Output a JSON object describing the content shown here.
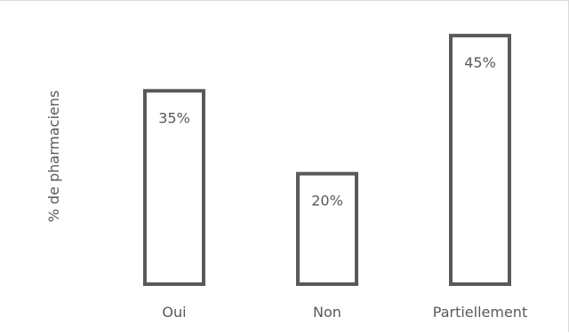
{
  "chart_data": {
    "type": "bar",
    "categories": [
      "Oui",
      "Non",
      "Partiellement"
    ],
    "values": [
      35,
      20,
      45
    ],
    "data_labels": [
      "35%",
      "20%",
      "45%"
    ],
    "title": "",
    "xlabel": "",
    "ylabel": "% de pharmaciens",
    "ylim": [
      0,
      50
    ],
    "grid": false,
    "legend": "none",
    "colors": {
      "bar_fill": "#ffffff",
      "bar_outline": "#595959",
      "text": "#595959",
      "frame": "#d9d9d9"
    }
  }
}
